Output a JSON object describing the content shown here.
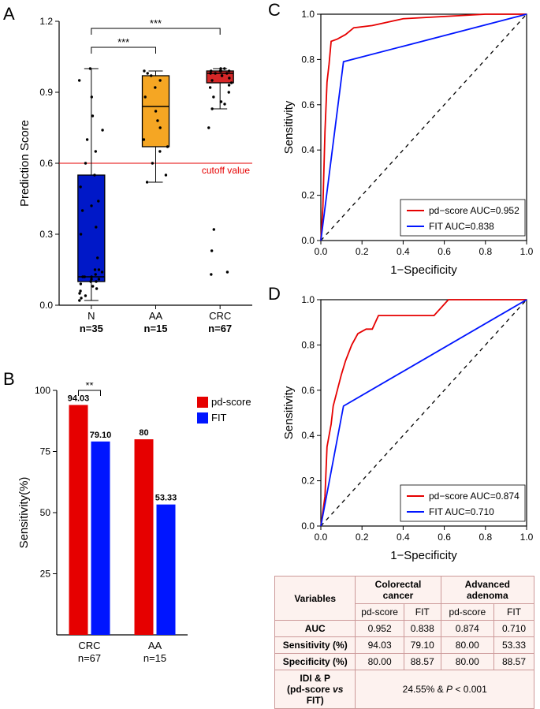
{
  "panelA": {
    "label": "A",
    "ylabel": "Prediction Score",
    "ylim": [
      0.0,
      1.2
    ],
    "yticks": [
      0.0,
      0.3,
      0.6,
      0.9,
      1.2
    ],
    "groups": [
      "N",
      "AA",
      "CRC"
    ],
    "n_labels": [
      "n=35",
      "n=15",
      "n=67"
    ],
    "cutoff_label": "cutoff value",
    "cutoff_value": 0.6,
    "sig": [
      {
        "from": 0,
        "to": 1,
        "label": "***",
        "y": 1.09
      },
      {
        "from": 0,
        "to": 2,
        "label": "***",
        "y": 1.17
      }
    ],
    "boxes": [
      {
        "fill": "#0018c8",
        "q1": 0.1,
        "med": 0.12,
        "q3": 0.55,
        "wlo": 0.02,
        "whi": 1.0
      },
      {
        "fill": "#f5a623",
        "q1": 0.67,
        "med": 0.84,
        "q3": 0.97,
        "wlo": 0.52,
        "whi": 0.99
      },
      {
        "fill": "#d62728",
        "q1": 0.94,
        "med": 0.98,
        "q3": 0.99,
        "wlo": 0.83,
        "whi": 1.0
      }
    ],
    "points": [
      [
        0.02,
        0.03,
        0.04,
        0.05,
        0.06,
        0.07,
        0.08,
        0.09,
        0.1,
        0.1,
        0.11,
        0.11,
        0.12,
        0.12,
        0.12,
        0.13,
        0.14,
        0.15,
        0.15,
        0.2,
        0.3,
        0.33,
        0.4,
        0.42,
        0.44,
        0.5,
        0.55,
        0.6,
        0.65,
        0.7,
        0.74,
        0.8,
        0.88,
        0.95,
        1.0
      ],
      [
        0.52,
        0.55,
        0.6,
        0.65,
        0.67,
        0.7,
        0.75,
        0.78,
        0.82,
        0.88,
        0.92,
        0.95,
        0.97,
        0.98,
        0.99
      ],
      [
        0.13,
        0.14,
        0.23,
        0.32,
        0.75,
        0.83,
        0.85,
        0.86,
        0.88,
        0.9,
        0.92,
        0.93,
        0.94,
        0.95,
        0.96,
        0.97,
        0.97,
        0.98,
        0.98,
        0.98,
        0.99,
        0.99,
        0.99,
        0.99,
        1.0,
        1.0
      ]
    ],
    "axis_fontsize": 15
  },
  "panelB": {
    "label": "B",
    "ylabel": "Sensitivity(%)",
    "ylim": [
      0,
      100
    ],
    "yticks": [
      25,
      50,
      75,
      100
    ],
    "groups": [
      "CRC",
      "AA"
    ],
    "n_labels": [
      "n=67",
      "n=15"
    ],
    "series": [
      {
        "name": "pd-score",
        "color": "#e60000",
        "values": [
          94.03,
          80
        ]
      },
      {
        "name": "FIT",
        "color": "#0015ff",
        "values": [
          79.1,
          53.33
        ]
      }
    ],
    "value_labels": [
      [
        "94.03",
        "79.10"
      ],
      [
        "80",
        "53.33"
      ]
    ],
    "sig": {
      "between": 0,
      "label": "**",
      "y": 100
    },
    "legend_fontsize": 13
  },
  "panelC": {
    "label": "C",
    "xlabel": "1−Specificity",
    "ylabel": "Sensitivity",
    "lim": [
      0,
      1
    ],
    "ticks": [
      0.0,
      0.2,
      0.4,
      0.6,
      0.8,
      1.0
    ],
    "curves": [
      {
        "name": "pd−score",
        "auc": "0.952",
        "color": "#e60000",
        "pts": [
          [
            0,
            0
          ],
          [
            0.01,
            0.15
          ],
          [
            0.02,
            0.48
          ],
          [
            0.03,
            0.7
          ],
          [
            0.04,
            0.78
          ],
          [
            0.05,
            0.88
          ],
          [
            0.08,
            0.89
          ],
          [
            0.1,
            0.9
          ],
          [
            0.12,
            0.91
          ],
          [
            0.16,
            0.94
          ],
          [
            0.25,
            0.95
          ],
          [
            0.3,
            0.96
          ],
          [
            0.35,
            0.97
          ],
          [
            0.4,
            0.98
          ],
          [
            0.6,
            0.99
          ],
          [
            0.8,
            1.0
          ],
          [
            1,
            1
          ]
        ]
      },
      {
        "name": "FIT",
        "auc": "0.838",
        "color": "#0015ff",
        "pts": [
          [
            0,
            0
          ],
          [
            0.11,
            0.79
          ],
          [
            1,
            1
          ]
        ]
      }
    ],
    "legend_template": "{name}  AUC={auc}"
  },
  "panelD": {
    "label": "D",
    "xlabel": "1−Specificity",
    "ylabel": "Sensitivity",
    "lim": [
      0,
      1
    ],
    "ticks": [
      0.0,
      0.2,
      0.4,
      0.6,
      0.8,
      1.0
    ],
    "curves": [
      {
        "name": "pd−score",
        "auc": "0.874",
        "color": "#e60000",
        "pts": [
          [
            0,
            0
          ],
          [
            0.02,
            0.13
          ],
          [
            0.03,
            0.35
          ],
          [
            0.05,
            0.45
          ],
          [
            0.06,
            0.53
          ],
          [
            0.08,
            0.6
          ],
          [
            0.1,
            0.67
          ],
          [
            0.12,
            0.73
          ],
          [
            0.15,
            0.8
          ],
          [
            0.18,
            0.85
          ],
          [
            0.22,
            0.87
          ],
          [
            0.25,
            0.87
          ],
          [
            0.28,
            0.93
          ],
          [
            0.4,
            0.93
          ],
          [
            0.55,
            0.93
          ],
          [
            0.62,
            1.0
          ],
          [
            1,
            1
          ]
        ]
      },
      {
        "name": "FIT",
        "auc": "0.710",
        "color": "#0015ff",
        "pts": [
          [
            0,
            0
          ],
          [
            0.11,
            0.53
          ],
          [
            1,
            1
          ]
        ]
      }
    ],
    "legend_template": "{name}  AUC={auc}"
  },
  "table": {
    "header_rows": [
      [
        "Variables",
        "Colorectal cancer",
        "Advanced adenoma"
      ],
      [
        "pd-score",
        "FIT",
        "pd-score",
        "FIT"
      ]
    ],
    "rows": [
      [
        "AUC",
        "0.952",
        "0.838",
        "0.874",
        "0.710"
      ],
      [
        "Sensitivity (%)",
        "94.03",
        "79.10",
        "80.00",
        "53.33"
      ],
      [
        "Specificity (%)",
        "80.00",
        "88.57",
        "80.00",
        "88.57"
      ]
    ],
    "idi": {
      "label": "IDI & P\n(pd-score vs FIT)",
      "value": "24.55% & P < 0.001"
    }
  }
}
